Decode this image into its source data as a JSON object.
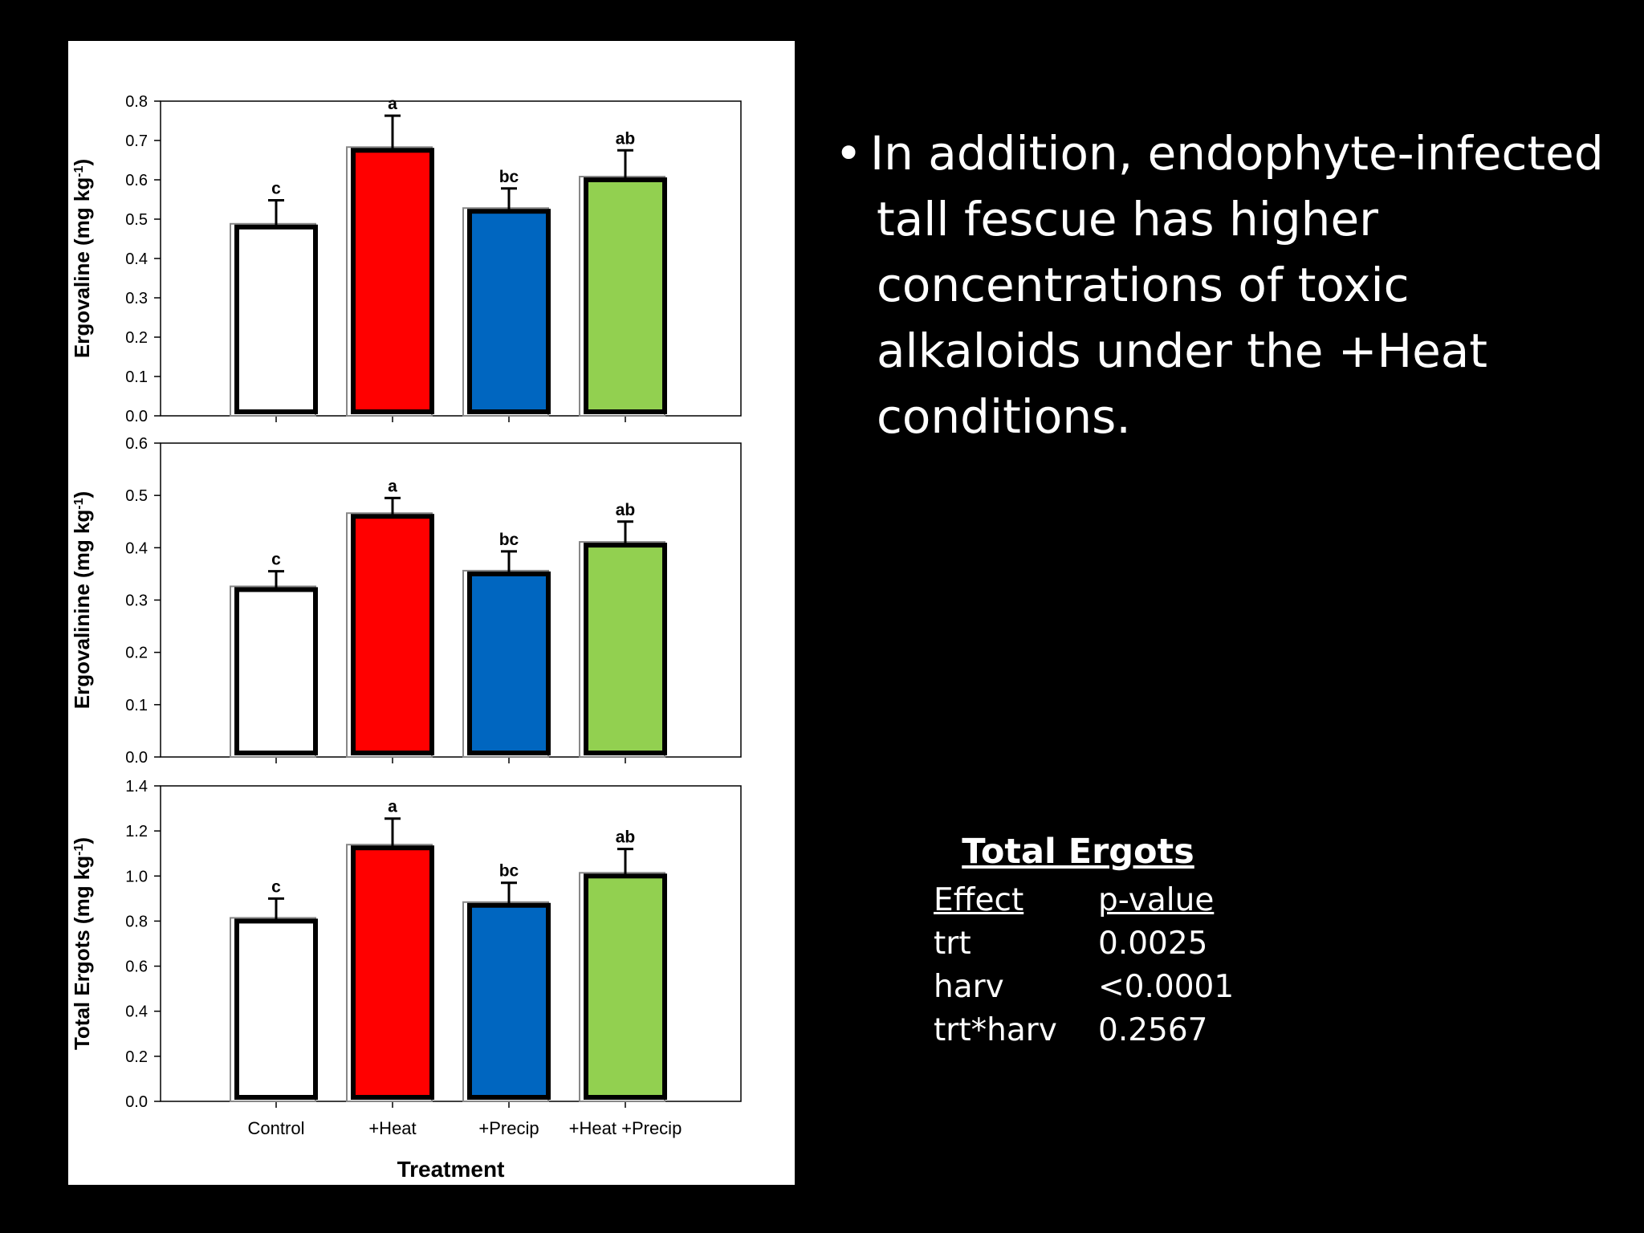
{
  "bullet_text": "In addition, endophyte-infected tall fescue has higher concentrations of toxic alkaloids under the +Heat conditions.",
  "stats_table": {
    "title": "Total Ergots",
    "headers": [
      "Effect",
      "p-value"
    ],
    "rows": [
      {
        "effect": "trt",
        "p": "0.0025"
      },
      {
        "effect": "harv",
        "p": "<0.0001"
      },
      {
        "effect": "trt*harv",
        "p": "0.2567"
      }
    ]
  },
  "chart_data": [
    {
      "type": "bar",
      "categories": [
        "Control",
        "+Heat",
        "+Precip",
        "+Heat +Precip"
      ],
      "values": [
        0.48,
        0.675,
        0.52,
        0.6
      ],
      "errors": [
        0.068,
        0.088,
        0.058,
        0.075
      ],
      "letters": [
        "c",
        "a",
        "bc",
        "ab"
      ],
      "colors": [
        "#ffffff",
        "#ff0000",
        "#0066c0",
        "#92d050"
      ],
      "ylabel": "Ergovaline (mg kg",
      "ylabel_sup": "-1",
      "ylim": [
        0,
        0.8
      ],
      "yticks": [
        0.0,
        0.1,
        0.2,
        0.3,
        0.4,
        0.5,
        0.6,
        0.7,
        0.8
      ],
      "tick_decimals": 1
    },
    {
      "type": "bar",
      "categories": [
        "Control",
        "+Heat",
        "+Precip",
        "+Heat +Precip"
      ],
      "values": [
        0.32,
        0.46,
        0.35,
        0.405
      ],
      "errors": [
        0.035,
        0.035,
        0.043,
        0.045
      ],
      "letters": [
        "c",
        "a",
        "bc",
        "ab"
      ],
      "colors": [
        "#ffffff",
        "#ff0000",
        "#0066c0",
        "#92d050"
      ],
      "ylabel": "Ergovalinine (mg kg",
      "ylabel_sup": "-1",
      "ylim": [
        0,
        0.6
      ],
      "yticks": [
        0.0,
        0.1,
        0.2,
        0.3,
        0.4,
        0.5,
        0.6
      ],
      "tick_decimals": 1
    },
    {
      "type": "bar",
      "categories": [
        "Control",
        "+Heat",
        "+Precip",
        "+Heat +Precip"
      ],
      "values": [
        0.8,
        1.125,
        0.87,
        1.0
      ],
      "errors": [
        0.1,
        0.13,
        0.1,
        0.12
      ],
      "letters": [
        "c",
        "a",
        "bc",
        "ab"
      ],
      "colors": [
        "#ffffff",
        "#ff0000",
        "#0066c0",
        "#92d050"
      ],
      "ylabel": "Total Ergots (mg kg",
      "ylabel_sup": "-1",
      "ylim": [
        0,
        1.4
      ],
      "yticks": [
        0.0,
        0.2,
        0.4,
        0.6,
        0.8,
        1.0,
        1.2,
        1.4
      ],
      "tick_decimals": 1,
      "xlabel": "Treatment",
      "show_categories": true
    }
  ]
}
